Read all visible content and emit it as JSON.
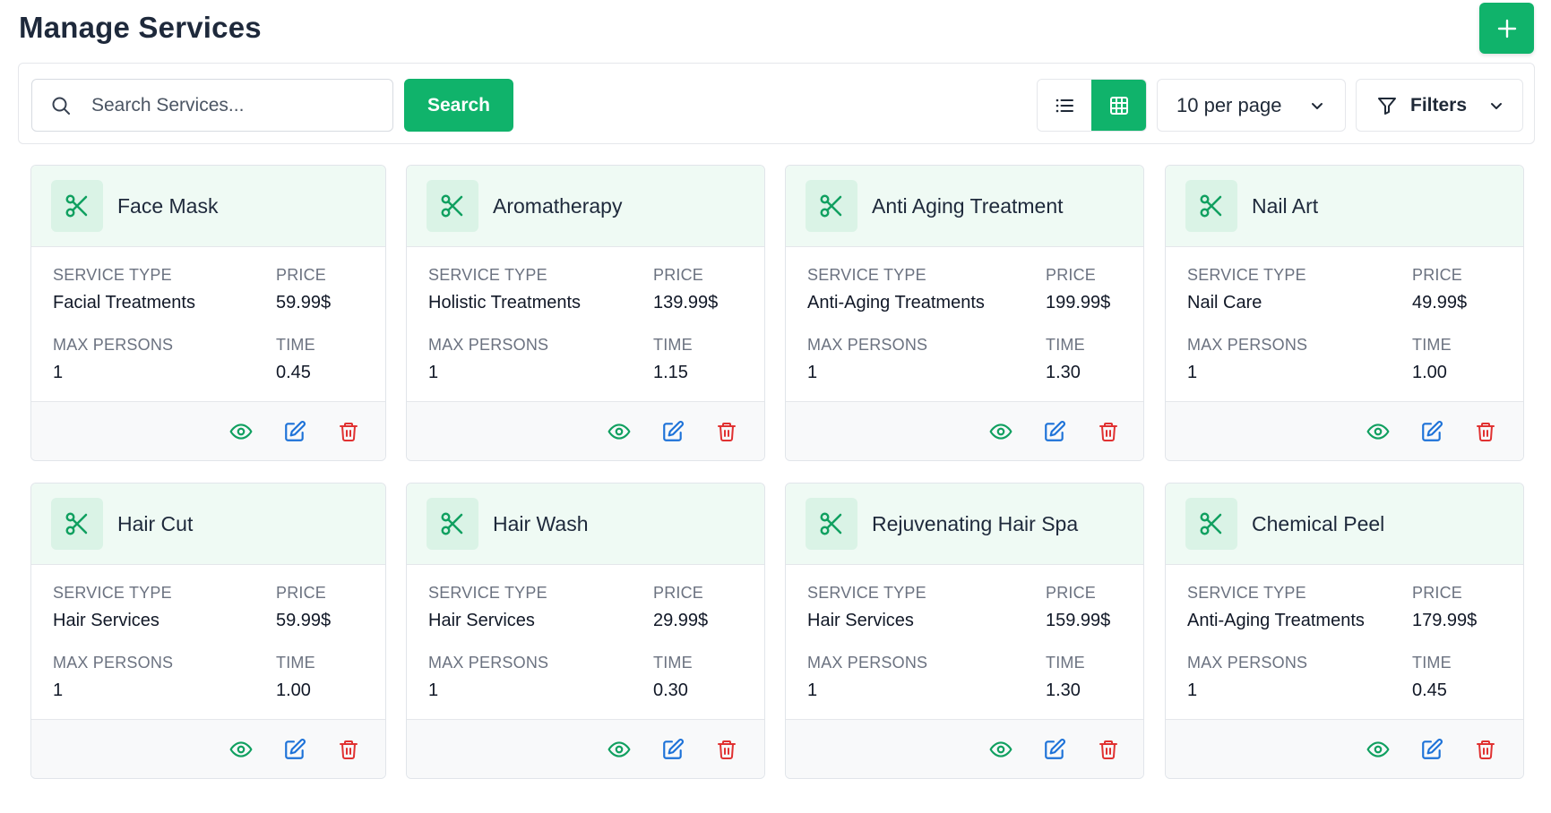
{
  "header": {
    "title": "Manage Services",
    "add_icon": "plus-icon"
  },
  "toolbar": {
    "search_placeholder": "Search Services...",
    "search_button": "Search",
    "per_page": "10 per page",
    "filters_label": "Filters",
    "active_view": "grid"
  },
  "labels": {
    "service_type": "SERVICE TYPE",
    "price": "PRICE",
    "max_persons": "MAX PERSONS",
    "time": "TIME"
  },
  "colors": {
    "accent": "#10b36b",
    "view": "#10a060",
    "edit": "#1d72d8",
    "delete": "#e03131"
  },
  "services": [
    {
      "name": "Face Mask",
      "service_type": "Facial Treatments",
      "price": "59.99$",
      "max_persons": "1",
      "time": "0.45"
    },
    {
      "name": "Aromatherapy",
      "service_type": "Holistic Treatments",
      "price": "139.99$",
      "max_persons": "1",
      "time": "1.15"
    },
    {
      "name": "Anti Aging Treatment",
      "service_type": "Anti-Aging Treatments",
      "price": "199.99$",
      "max_persons": "1",
      "time": "1.30"
    },
    {
      "name": "Nail Art",
      "service_type": "Nail Care",
      "price": "49.99$",
      "max_persons": "1",
      "time": "1.00"
    },
    {
      "name": "Hair Cut",
      "service_type": "Hair Services",
      "price": "59.99$",
      "max_persons": "1",
      "time": "1.00"
    },
    {
      "name": "Hair Wash",
      "service_type": "Hair Services",
      "price": "29.99$",
      "max_persons": "1",
      "time": "0.30"
    },
    {
      "name": "Rejuvenating Hair Spa",
      "service_type": "Hair Services",
      "price": "159.99$",
      "max_persons": "1",
      "time": "1.30"
    },
    {
      "name": "Chemical Peel",
      "service_type": "Anti-Aging Treatments",
      "price": "179.99$",
      "max_persons": "1",
      "time": "0.45"
    }
  ]
}
